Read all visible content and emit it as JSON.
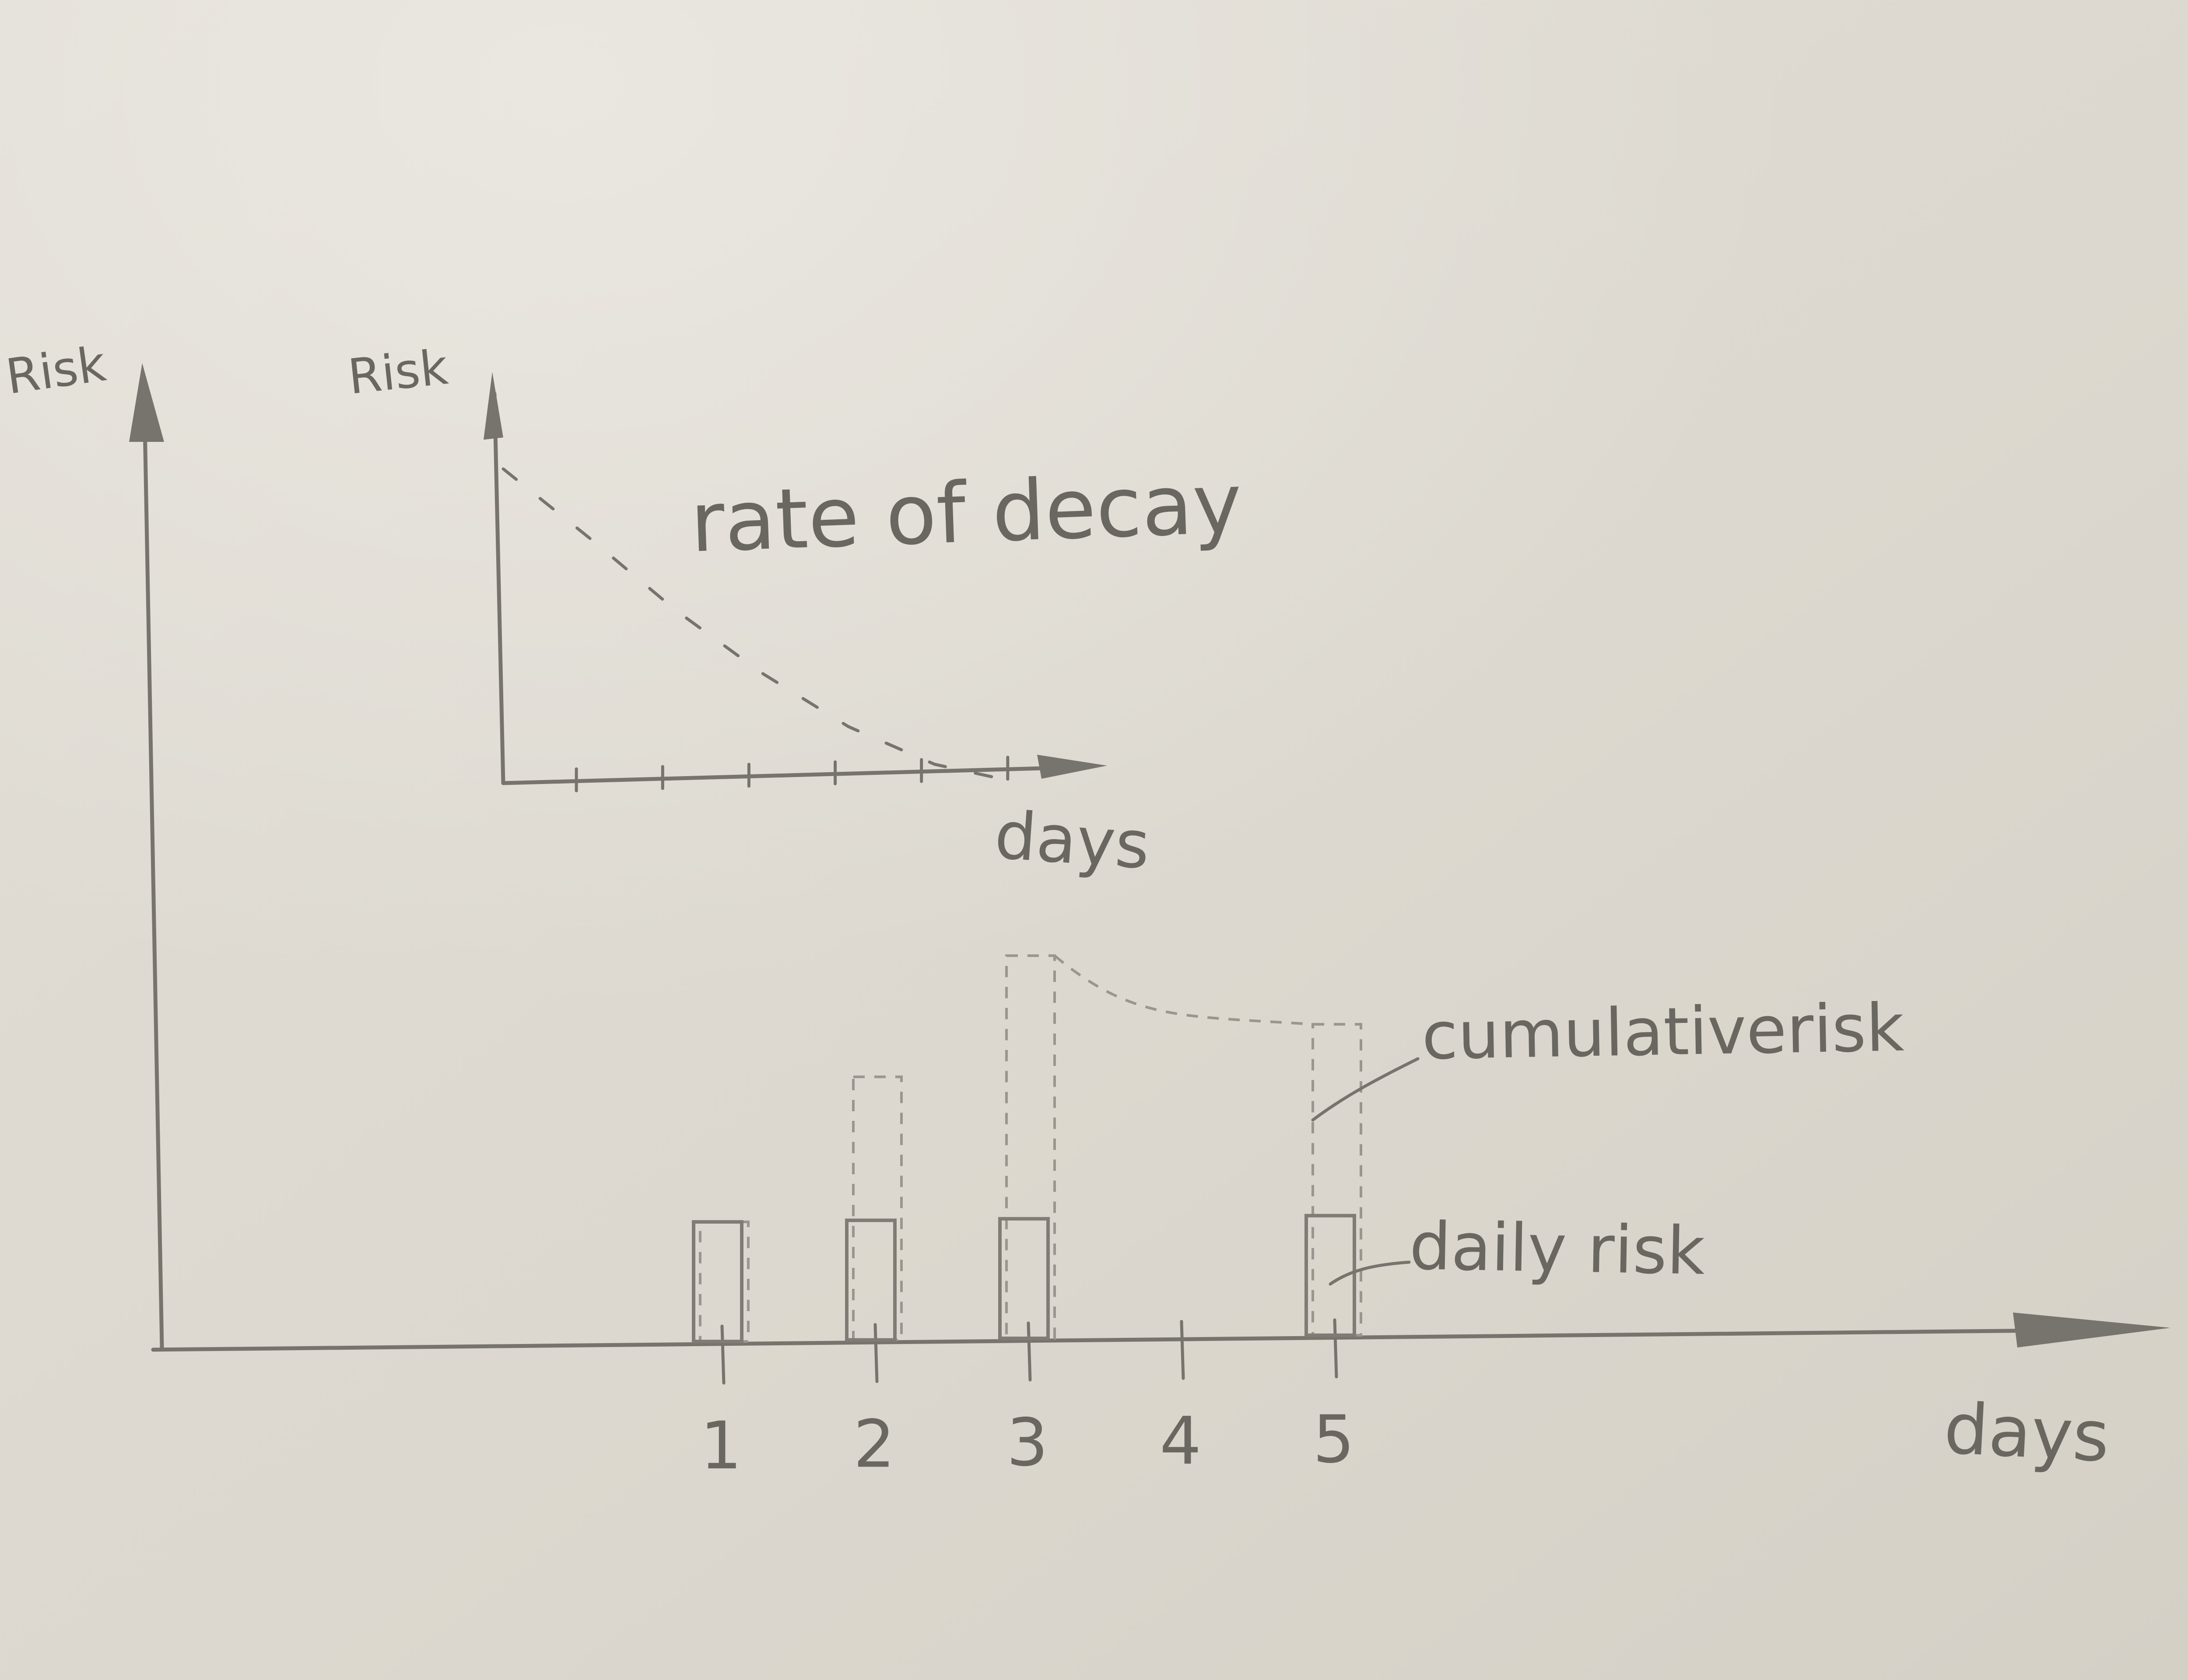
{
  "chart_data": [
    {
      "type": "line",
      "ylabel": "Risk",
      "xlabel": "days",
      "annotations": [
        "rate of decay"
      ],
      "x": [
        0,
        1,
        2,
        3,
        4,
        5,
        6
      ],
      "values": [
        1.0,
        0.78,
        0.55,
        0.35,
        0.18,
        0.06,
        0.0
      ],
      "xlim": [
        0,
        7
      ],
      "ylim": [
        0,
        1.1
      ],
      "grid": false,
      "legend": "none"
    },
    {
      "type": "bar",
      "ylabel": "Risk",
      "xlabel": "days",
      "categories": [
        "1",
        "2",
        "3",
        "4",
        "5"
      ],
      "series": [
        {
          "name": "daily risk",
          "values": [
            1,
            1,
            1,
            0,
            1
          ]
        },
        {
          "name": "cumulativerisk",
          "values": [
            1,
            2.2,
            3.2,
            0,
            2.6
          ]
        }
      ],
      "cumulative_curve": {
        "from_x": 3,
        "to_x": 5,
        "from_y": 3.2,
        "to_y": 2.6
      },
      "ylim": [
        0,
        9
      ],
      "grid": false,
      "legend": "right"
    }
  ],
  "colors": {
    "paper": "#dcd7cd",
    "pencil": "#77746e"
  }
}
